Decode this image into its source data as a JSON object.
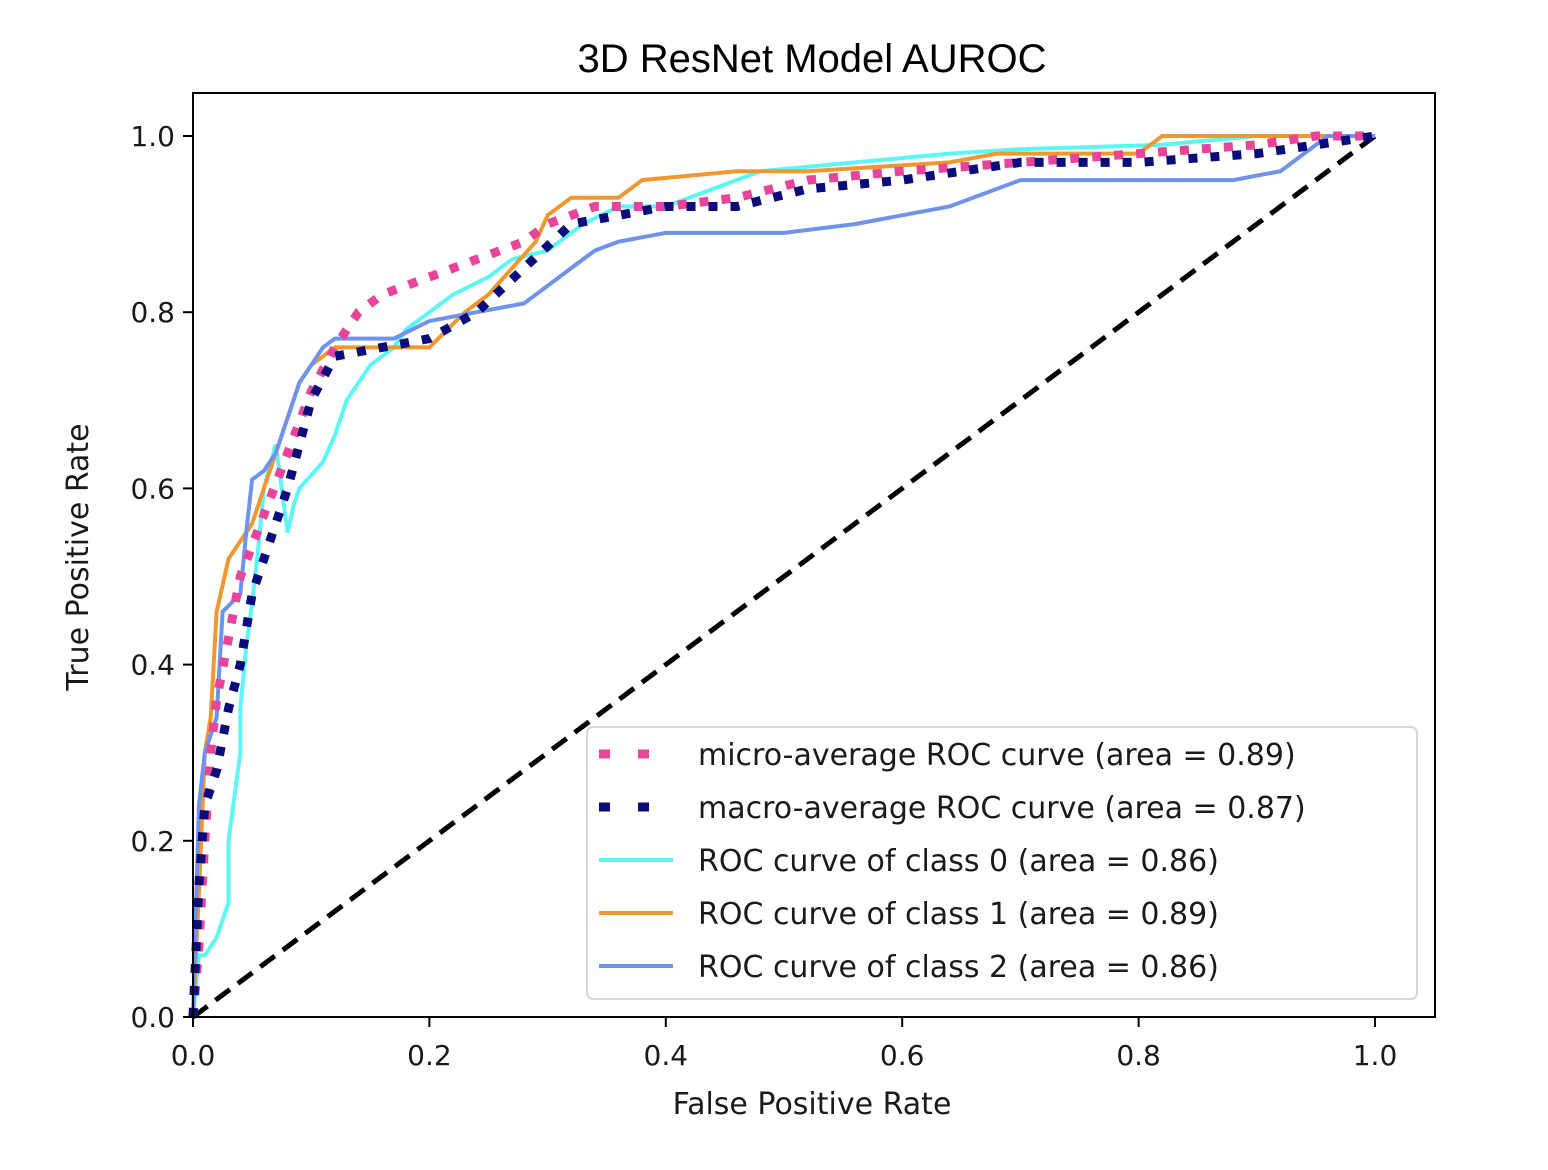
{
  "chart_data": {
    "type": "line",
    "title": "3D ResNet Model AUROC",
    "xlabel": "False Positive Rate",
    "ylabel": "True Positive Rate",
    "xlim": [
      -0.0,
      1.05
    ],
    "ylim": [
      0.0,
      1.05
    ],
    "xticks": [
      "0.0",
      "0.2",
      "0.4",
      "0.6",
      "0.8",
      "1.0"
    ],
    "yticks": [
      "0.0",
      "0.2",
      "0.4",
      "0.6",
      "0.8",
      "1.0"
    ],
    "legend_position": "lower-right",
    "series": [
      {
        "name": "micro-average ROC curve (area = 0.89)",
        "color": "#e8459a",
        "style": "dotted",
        "x": [
          0.0,
          0.005,
          0.01,
          0.015,
          0.02,
          0.03,
          0.04,
          0.06,
          0.08,
          0.1,
          0.12,
          0.14,
          0.16,
          0.2,
          0.24,
          0.28,
          0.3,
          0.34,
          0.4,
          0.46,
          0.52,
          0.6,
          0.7,
          0.8,
          0.9,
          0.95,
          1.0
        ],
        "y": [
          0.0,
          0.08,
          0.2,
          0.3,
          0.36,
          0.43,
          0.5,
          0.57,
          0.64,
          0.71,
          0.76,
          0.8,
          0.82,
          0.84,
          0.86,
          0.88,
          0.9,
          0.92,
          0.92,
          0.93,
          0.95,
          0.96,
          0.97,
          0.98,
          0.99,
          1.0,
          1.0
        ]
      },
      {
        "name": "macro-average ROC curve (area = 0.87)",
        "color": "#0b0b7a",
        "style": "dotted",
        "x": [
          0.0,
          0.005,
          0.01,
          0.02,
          0.03,
          0.04,
          0.05,
          0.06,
          0.08,
          0.1,
          0.12,
          0.16,
          0.2,
          0.24,
          0.28,
          0.32,
          0.36,
          0.4,
          0.46,
          0.52,
          0.6,
          0.7,
          0.8,
          0.9,
          0.95,
          1.0
        ],
        "y": [
          0.0,
          0.15,
          0.24,
          0.28,
          0.35,
          0.4,
          0.48,
          0.52,
          0.6,
          0.7,
          0.75,
          0.76,
          0.77,
          0.8,
          0.85,
          0.9,
          0.91,
          0.92,
          0.92,
          0.94,
          0.95,
          0.97,
          0.97,
          0.98,
          0.99,
          1.0
        ]
      },
      {
        "name": "ROC curve of class 0 (area = 0.86)",
        "color": "#5cf6f6",
        "style": "solid",
        "x": [
          0.0,
          0.005,
          0.01,
          0.02,
          0.03,
          0.03,
          0.04,
          0.04,
          0.045,
          0.05,
          0.055,
          0.06,
          0.07,
          0.08,
          0.085,
          0.09,
          0.11,
          0.12,
          0.13,
          0.14,
          0.15,
          0.17,
          0.18,
          0.2,
          0.22,
          0.25,
          0.27,
          0.3,
          0.33,
          0.36,
          0.4,
          0.44,
          0.48,
          0.56,
          0.64,
          0.7,
          0.82,
          0.9,
          1.0
        ],
        "y": [
          0.0,
          0.07,
          0.07,
          0.09,
          0.13,
          0.2,
          0.3,
          0.35,
          0.42,
          0.47,
          0.53,
          0.6,
          0.65,
          0.55,
          0.58,
          0.6,
          0.63,
          0.66,
          0.7,
          0.72,
          0.74,
          0.76,
          0.78,
          0.8,
          0.82,
          0.84,
          0.86,
          0.87,
          0.9,
          0.92,
          0.92,
          0.94,
          0.96,
          0.97,
          0.98,
          0.985,
          0.99,
          1.0,
          1.0
        ]
      },
      {
        "name": "ROC curve of class 1 (area = 0.89)",
        "color": "#f0972f",
        "style": "solid",
        "x": [
          0.0,
          0.005,
          0.01,
          0.015,
          0.02,
          0.025,
          0.03,
          0.04,
          0.05,
          0.06,
          0.07,
          0.08,
          0.09,
          0.1,
          0.11,
          0.12,
          0.2,
          0.23,
          0.25,
          0.27,
          0.29,
          0.3,
          0.32,
          0.36,
          0.38,
          0.46,
          0.52,
          0.64,
          0.68,
          0.8,
          0.82,
          0.94,
          0.96,
          1.0
        ],
        "y": [
          0.0,
          0.14,
          0.3,
          0.34,
          0.46,
          0.49,
          0.52,
          0.54,
          0.56,
          0.6,
          0.64,
          0.68,
          0.72,
          0.74,
          0.75,
          0.76,
          0.76,
          0.8,
          0.82,
          0.85,
          0.88,
          0.91,
          0.93,
          0.93,
          0.95,
          0.96,
          0.96,
          0.97,
          0.98,
          0.98,
          1.0,
          1.0,
          1.0,
          1.0
        ]
      },
      {
        "name": "ROC curve of class 2 (area = 0.86)",
        "color": "#6f93ec",
        "style": "solid",
        "x": [
          0.0,
          0.005,
          0.01,
          0.02,
          0.025,
          0.04,
          0.045,
          0.05,
          0.06,
          0.07,
          0.08,
          0.09,
          0.1,
          0.11,
          0.12,
          0.14,
          0.17,
          0.2,
          0.24,
          0.28,
          0.3,
          0.32,
          0.34,
          0.36,
          0.4,
          0.5,
          0.56,
          0.64,
          0.68,
          0.7,
          0.76,
          0.8,
          0.88,
          0.92,
          0.94,
          0.96,
          1.0
        ],
        "y": [
          0.0,
          0.24,
          0.3,
          0.34,
          0.46,
          0.48,
          0.55,
          0.61,
          0.62,
          0.64,
          0.68,
          0.72,
          0.74,
          0.76,
          0.77,
          0.77,
          0.77,
          0.79,
          0.8,
          0.81,
          0.83,
          0.85,
          0.87,
          0.88,
          0.89,
          0.89,
          0.9,
          0.92,
          0.94,
          0.95,
          0.95,
          0.95,
          0.95,
          0.96,
          0.98,
          1.0,
          1.0
        ]
      },
      {
        "name": "",
        "color": "#000000",
        "style": "dashed",
        "x": [
          0.0,
          1.0
        ],
        "y": [
          0.0,
          1.0
        ]
      }
    ]
  }
}
